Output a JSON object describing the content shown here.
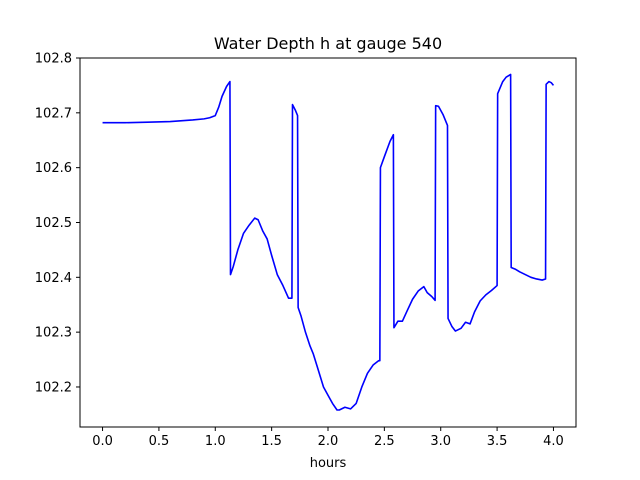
{
  "chart_data": {
    "type": "line",
    "title": "Water Depth h at gauge 540",
    "xlabel": "hours",
    "ylabel": "",
    "xlim": [
      -0.2,
      4.2
    ],
    "ylim": [
      102.127,
      102.8
    ],
    "xticks": [
      0.0,
      0.5,
      1.0,
      1.5,
      2.0,
      2.5,
      3.0,
      3.5,
      4.0
    ],
    "xtick_labels": [
      "0.0",
      "0.5",
      "1.0",
      "1.5",
      "2.0",
      "2.5",
      "3.0",
      "3.5",
      "4.0"
    ],
    "yticks": [
      102.2,
      102.3,
      102.4,
      102.5,
      102.6,
      102.7,
      102.8
    ],
    "ytick_labels": [
      "102.2",
      "102.3",
      "102.4",
      "102.5",
      "102.6",
      "102.7",
      "102.8"
    ],
    "grid": false,
    "series": [
      {
        "color": "#0000ff",
        "x": [
          0.0,
          0.2,
          0.4,
          0.6,
          0.8,
          0.9,
          0.95,
          1.0,
          1.03,
          1.06,
          1.1,
          1.13,
          1.135,
          1.16,
          1.2,
          1.25,
          1.3,
          1.35,
          1.38,
          1.42,
          1.46,
          1.5,
          1.55,
          1.6,
          1.65,
          1.68,
          1.685,
          1.71,
          1.73,
          1.735,
          1.76,
          1.8,
          1.84,
          1.87,
          1.9,
          1.93,
          1.96,
          2.0,
          2.04,
          2.08,
          2.1,
          2.15,
          2.2,
          2.25,
          2.3,
          2.35,
          2.4,
          2.45,
          2.46,
          2.465,
          2.5,
          2.55,
          2.58,
          2.585,
          2.62,
          2.66,
          2.7,
          2.75,
          2.8,
          2.85,
          2.88,
          2.92,
          2.95,
          2.955,
          2.98,
          3.02,
          3.06,
          3.065,
          3.1,
          3.13,
          3.18,
          3.22,
          3.26,
          3.3,
          3.35,
          3.4,
          3.45,
          3.5,
          3.505,
          3.55,
          3.58,
          3.62,
          3.625,
          3.66,
          3.7,
          3.75,
          3.8,
          3.85,
          3.9,
          3.93,
          3.935,
          3.96,
          3.98,
          4.0
        ],
        "y": [
          102.682,
          102.682,
          102.683,
          102.684,
          102.687,
          102.689,
          102.691,
          102.695,
          102.71,
          102.73,
          102.748,
          102.757,
          102.405,
          102.42,
          102.45,
          102.48,
          102.495,
          102.508,
          102.505,
          102.485,
          102.47,
          102.44,
          102.405,
          102.385,
          102.362,
          102.362,
          102.715,
          102.705,
          102.695,
          102.345,
          102.33,
          102.3,
          102.275,
          102.26,
          102.24,
          102.22,
          102.2,
          102.185,
          102.17,
          102.158,
          102.158,
          102.163,
          102.16,
          102.17,
          102.2,
          102.225,
          102.24,
          102.248,
          102.248,
          102.6,
          102.62,
          102.648,
          102.66,
          102.308,
          102.32,
          102.32,
          102.338,
          102.36,
          102.375,
          102.383,
          102.372,
          102.365,
          102.358,
          102.713,
          102.712,
          102.697,
          102.677,
          102.325,
          102.31,
          102.302,
          102.307,
          102.318,
          102.315,
          102.337,
          102.357,
          102.368,
          102.376,
          102.385,
          102.735,
          102.757,
          102.765,
          102.77,
          102.418,
          102.415,
          102.41,
          102.405,
          102.4,
          102.397,
          102.395,
          102.397,
          102.752,
          102.757,
          102.755,
          102.75
        ]
      }
    ]
  }
}
